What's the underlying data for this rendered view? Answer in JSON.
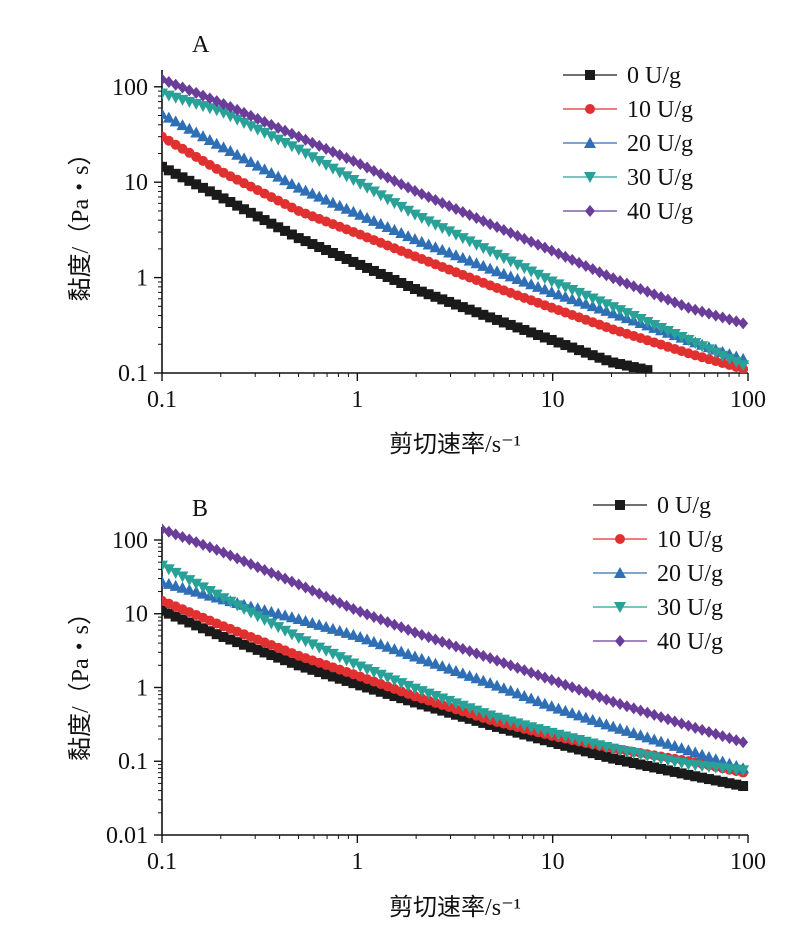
{
  "chart_data": [
    {
      "panel": "A",
      "type": "scatter",
      "xscale": "log",
      "yscale": "log",
      "xlabel": "剪切速率/s⁻¹",
      "ylabel": "黏度/（Pa・s）",
      "xlim": [
        0.1,
        100
      ],
      "ylim": [
        0.1,
        150
      ],
      "xticks": [
        "0.1",
        "1",
        "10",
        "100"
      ],
      "yticks": [
        "0.1",
        "1",
        "10",
        "100"
      ],
      "legend_position": "top-right",
      "series": [
        {
          "name": "0 U/g",
          "color": "#1a1a1a",
          "marker": "square",
          "x": [
            0.1,
            0.2,
            0.5,
            1,
            2,
            5,
            10,
            20,
            32
          ],
          "y": [
            14.5,
            7,
            2.6,
            1.4,
            0.75,
            0.37,
            0.22,
            0.13,
            0.105
          ]
        },
        {
          "name": "10 U/g",
          "color": "#e03030",
          "marker": "circle",
          "x": [
            0.1,
            0.2,
            0.5,
            1,
            2,
            5,
            10,
            20,
            50,
            95
          ],
          "y": [
            30,
            13,
            5,
            2.9,
            1.65,
            0.8,
            0.48,
            0.29,
            0.16,
            0.11
          ]
        },
        {
          "name": "20 U/g",
          "color": "#2f6fb5",
          "marker": "triangle-up",
          "x": [
            0.1,
            0.2,
            0.5,
            1,
            2,
            5,
            10,
            20,
            50,
            95
          ],
          "y": [
            52,
            24,
            8.8,
            4.7,
            2.5,
            1.2,
            0.7,
            0.43,
            0.22,
            0.14
          ]
        },
        {
          "name": "30 U/g",
          "color": "#2aa198",
          "marker": "triangle-down",
          "x": [
            0.1,
            0.2,
            0.5,
            1,
            2,
            5,
            10,
            20,
            50,
            95
          ],
          "y": [
            85,
            55,
            22,
            10,
            4.5,
            1.8,
            0.9,
            0.5,
            0.22,
            0.12
          ]
        },
        {
          "name": "40 U/g",
          "color": "#6a3d9a",
          "marker": "diamond",
          "x": [
            0.1,
            0.2,
            0.5,
            1,
            2,
            5,
            10,
            20,
            50,
            95
          ],
          "y": [
            120,
            68,
            30,
            16,
            8,
            3.5,
            1.9,
            1.0,
            0.48,
            0.33
          ]
        }
      ]
    },
    {
      "panel": "B",
      "type": "scatter",
      "xscale": "log",
      "yscale": "log",
      "xlabel": "剪切速率/s⁻¹",
      "ylabel": "黏度/（Pa・s）",
      "xlim": [
        0.1,
        100
      ],
      "ylim": [
        0.01,
        150
      ],
      "xticks": [
        "0.1",
        "1",
        "10",
        "100"
      ],
      "yticks": [
        "0.01",
        "0.1",
        "1",
        "10",
        "100"
      ],
      "legend_position": "top-right",
      "series": [
        {
          "name": "0 U/g",
          "color": "#1a1a1a",
          "marker": "square",
          "x": [
            0.1,
            0.2,
            0.5,
            1,
            2,
            5,
            10,
            20,
            50,
            95
          ],
          "y": [
            11,
            5,
            2,
            1.1,
            0.62,
            0.3,
            0.18,
            0.11,
            0.065,
            0.046
          ]
        },
        {
          "name": "10 U/g",
          "color": "#e03030",
          "marker": "circle",
          "x": [
            0.1,
            0.2,
            0.5,
            1,
            2,
            5,
            10,
            20,
            50,
            95
          ],
          "y": [
            15,
            7,
            2.7,
            1.45,
            0.75,
            0.35,
            0.22,
            0.15,
            0.1,
            0.07
          ]
        },
        {
          "name": "20 U/g",
          "color": "#2f6fb5",
          "marker": "triangle-up",
          "x": [
            0.1,
            0.2,
            0.5,
            1,
            2,
            5,
            10,
            20,
            50,
            95
          ],
          "y": [
            27,
            16,
            8.5,
            5,
            2.6,
            1.1,
            0.55,
            0.3,
            0.14,
            0.08
          ]
        },
        {
          "name": "30 U/g",
          "color": "#2aa198",
          "marker": "triangle-down",
          "x": [
            0.1,
            0.2,
            0.5,
            1,
            2,
            5,
            10,
            20,
            50,
            95
          ],
          "y": [
            45,
            17,
            4.7,
            2,
            0.95,
            0.4,
            0.24,
            0.15,
            0.09,
            0.075
          ]
        },
        {
          "name": "40 U/g",
          "color": "#6a3d9a",
          "marker": "diamond",
          "x": [
            0.1,
            0.2,
            0.5,
            1,
            2,
            5,
            10,
            20,
            50,
            95
          ],
          "y": [
            140,
            70,
            25,
            11,
            5.5,
            2.4,
            1.25,
            0.65,
            0.3,
            0.18
          ]
        }
      ]
    }
  ]
}
